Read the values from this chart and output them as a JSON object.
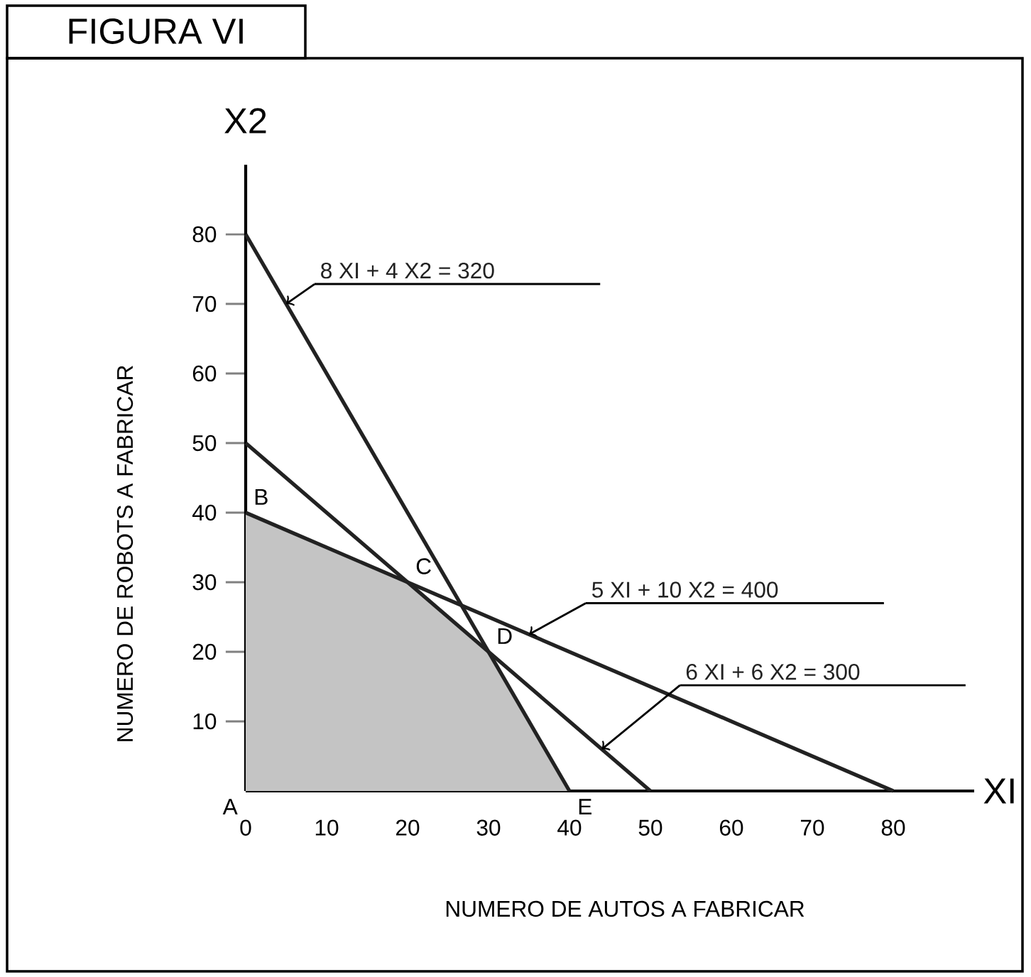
{
  "chart_data": {
    "type": "line",
    "title": "FIGURA VI",
    "xlabel": "NUMERO DE AUTOS A FABRICAR",
    "ylabel": "NUMERO DE ROBOTS A FABRICAR",
    "xlim": [
      0,
      90
    ],
    "ylim": [
      0,
      90
    ],
    "xticks": [
      0,
      10,
      20,
      30,
      40,
      50,
      60,
      70,
      80
    ],
    "yticks": [
      10,
      20,
      30,
      40,
      50,
      60,
      70,
      80
    ],
    "legend": false,
    "grid": false,
    "marker": "none",
    "line_style": "solid",
    "series": [
      {
        "type": "area",
        "color": "#c4c4c4",
        "x": [
          0,
          0,
          20,
          30,
          40
        ],
        "values": [
          0,
          40,
          30,
          20,
          0
        ]
      },
      {
        "name": "8 XI + 4 X2 = 320",
        "color": "#222222",
        "x": [
          0,
          40
        ],
        "values": [
          80,
          0
        ]
      },
      {
        "name": "5 XI + 10 X2 = 400",
        "color": "#222222",
        "x": [
          0,
          80
        ],
        "values": [
          40,
          0
        ]
      },
      {
        "name": "6 XI + 6 X2 = 300",
        "color": "#222222",
        "x": [
          0,
          50
        ],
        "values": [
          50,
          0
        ]
      }
    ],
    "annotations": [
      "X2",
      "XI",
      {
        "text": "A",
        "x": 0,
        "y": 0
      },
      {
        "text": "B",
        "x": 0,
        "y": 40
      },
      {
        "text": "C",
        "x": 20,
        "y": 30
      },
      {
        "text": "D",
        "x": 30,
        "y": 20
      },
      {
        "text": "E",
        "x": 40,
        "y": 0
      }
    ]
  }
}
